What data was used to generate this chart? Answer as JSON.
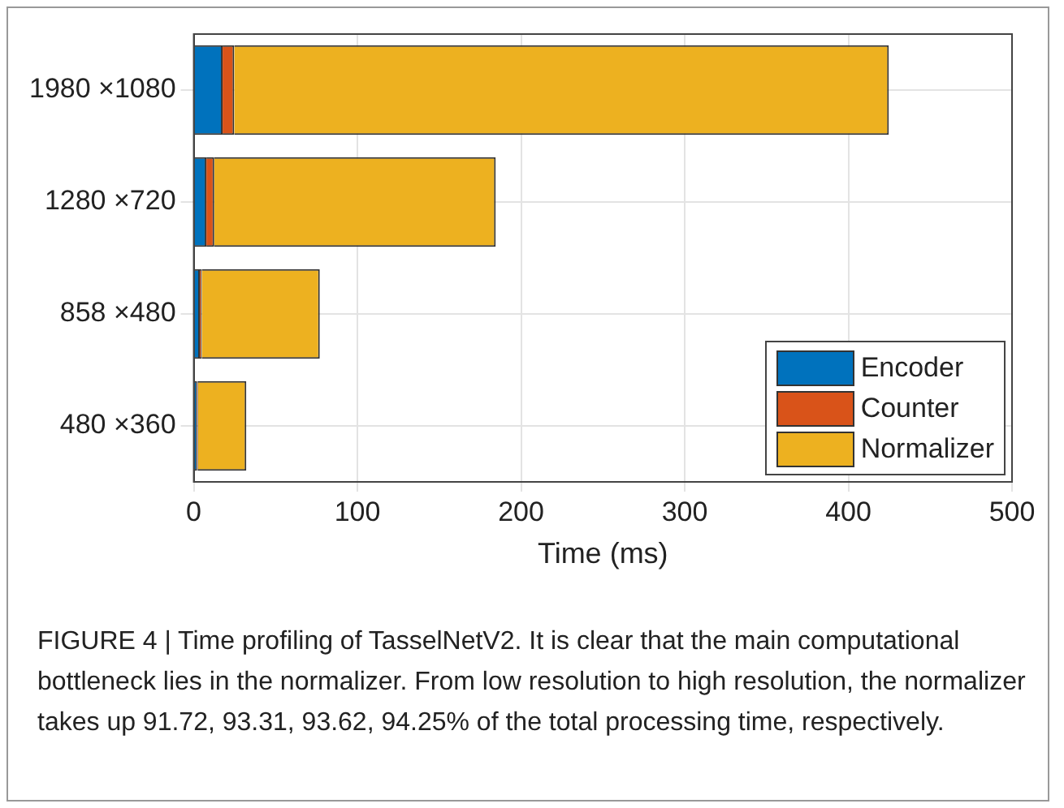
{
  "chart_data": {
    "type": "bar",
    "orientation": "horizontal",
    "stacked": true,
    "categories": [
      "1980 ×1080",
      "1280 ×720",
      "858 ×480",
      "480 ×360"
    ],
    "series": [
      {
        "name": "Encoder",
        "color": "#0072bd",
        "values": [
          17.6,
          7.7,
          3.7,
          2
        ]
      },
      {
        "name": "Counter",
        "color": "#d95319",
        "values": [
          7.1,
          4.8,
          1.2,
          0.6
        ]
      },
      {
        "name": "Normalizer",
        "color": "#edb120",
        "values": [
          400,
          172,
          72.1,
          29.5
        ]
      }
    ],
    "xlabel": "Time (ms)",
    "xlim": [
      0,
      500
    ],
    "xticks": [
      0,
      100,
      200,
      300,
      400,
      500
    ],
    "grid": true,
    "legend": "bottom right",
    "annotations": [
      "FIGURE 4 | Time profiling of TasselNetV2. It is clear that the main computational bottleneck lies in the normalizer. From low resolution to high resolution, the normalizer takes up 91.72, 93.31, 93.62, 94.25% of the total processing time, respectively."
    ]
  }
}
